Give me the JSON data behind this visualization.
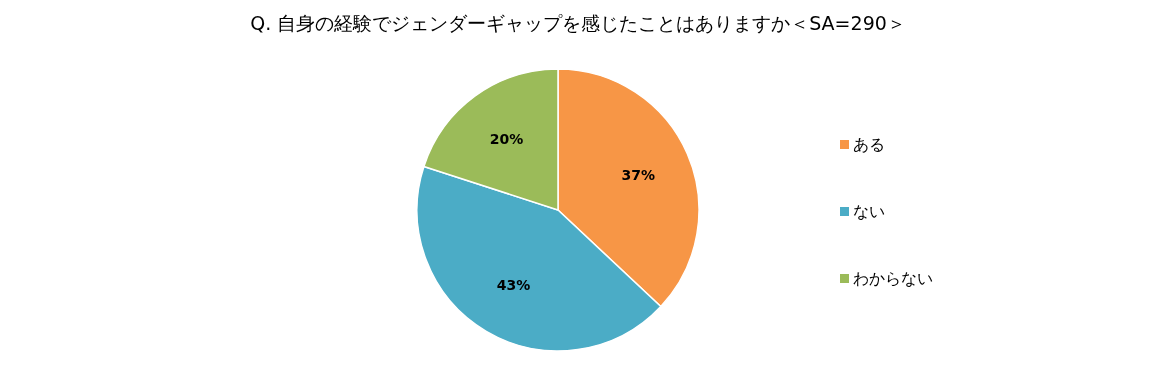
{
  "chart_data": {
    "type": "pie",
    "title": "Q. 自身の経験でジェンダーギャップを感じたことはありますか＜SA=290＞",
    "categories": [
      "ある",
      "ない",
      "わからない"
    ],
    "values": [
      37,
      43,
      20
    ],
    "value_labels": [
      "37%",
      "43%",
      "20%"
    ],
    "colors": [
      "#f79646",
      "#4bacc6",
      "#9bbb59"
    ],
    "legend": "right"
  }
}
